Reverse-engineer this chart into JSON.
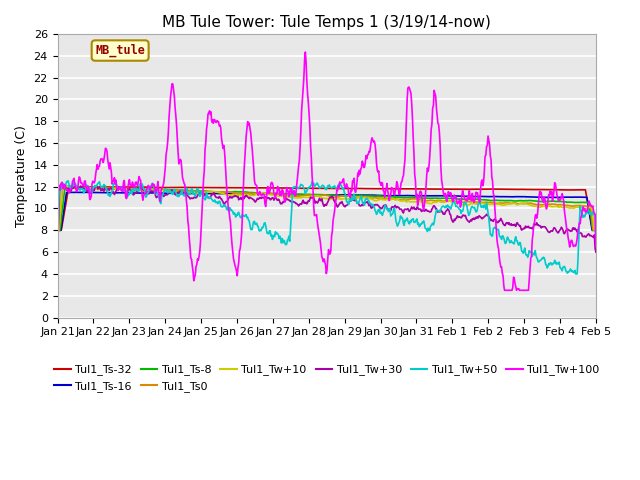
{
  "title": "MB Tule Tower: Tule Temps 1 (3/19/14-now)",
  "ylabel": "Temperature (C)",
  "ylim": [
    0,
    26
  ],
  "yticks": [
    0,
    2,
    4,
    6,
    8,
    10,
    12,
    14,
    16,
    18,
    20,
    22,
    24,
    26
  ],
  "xtick_labels": [
    "Jan 21",
    "Jan 22",
    "Jan 23",
    "Jan 24",
    "Jan 25",
    "Jan 26",
    "Jan 27",
    "Jan 28",
    "Jan 29",
    "Jan 30",
    "Jan 31",
    "Feb 1",
    "Feb 2",
    "Feb 3",
    "Feb 4",
    "Feb 5"
  ],
  "fig_bg_color": "#ffffff",
  "plot_bg_color": "#e8e8e8",
  "grid_color": "#ffffff",
  "series": {
    "Tul1_Ts-32": {
      "color": "#cc0000",
      "lw": 1.2
    },
    "Tul1_Ts-16": {
      "color": "#0000cc",
      "lw": 1.2
    },
    "Tul1_Ts-8": {
      "color": "#00bb00",
      "lw": 1.2
    },
    "Tul1_Ts0": {
      "color": "#dd8800",
      "lw": 1.2
    },
    "Tul1_Tw+10": {
      "color": "#cccc00",
      "lw": 1.2
    },
    "Tul1_Tw+30": {
      "color": "#aa00aa",
      "lw": 1.2
    },
    "Tul1_Tw+50": {
      "color": "#00cccc",
      "lw": 1.2
    },
    "Tul1_Tw+100": {
      "color": "#ff00ff",
      "lw": 1.2
    }
  },
  "legend_label": "MB_tule",
  "legend_text_color": "#990000",
  "legend_bg": "#ffffcc",
  "legend_border": "#aa8800",
  "title_fontsize": 11,
  "axis_fontsize": 9,
  "tick_fontsize": 8
}
